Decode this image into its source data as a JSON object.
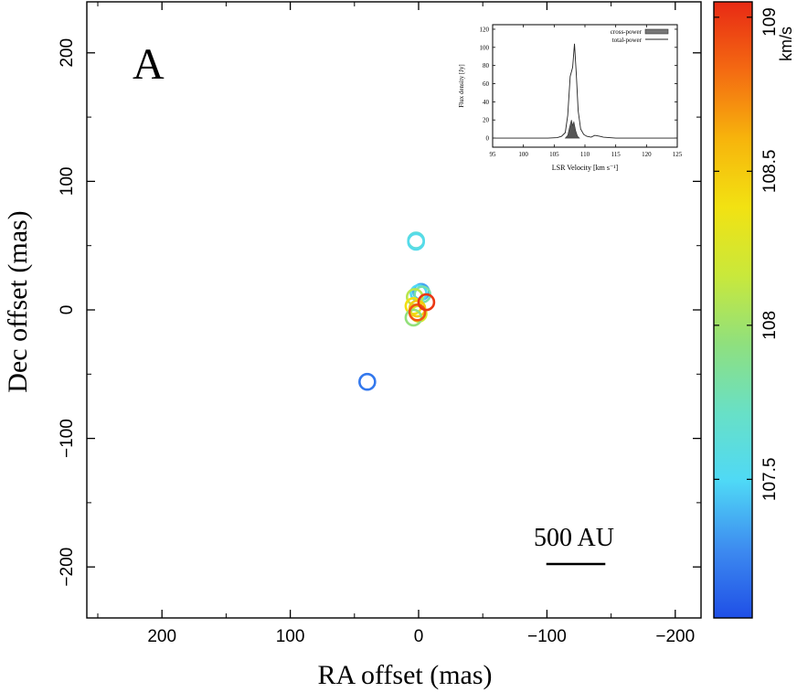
{
  "chart_data": [
    {
      "type": "scatter",
      "panel_label": "A",
      "xlabel": "RA offset (mas)",
      "ylabel": "Dec offset (mas)",
      "xlim": [
        260,
        -220
      ],
      "ylim": [
        -240,
        240
      ],
      "x_reversed": true,
      "x_ticks": [
        200,
        100,
        0,
        -100,
        -200
      ],
      "y_ticks": [
        200,
        100,
        0,
        -100,
        -200
      ],
      "x_tick_labels": [
        "200",
        "100",
        "0",
        "−100",
        "−200"
      ],
      "y_tick_labels": [
        "200",
        "100",
        "0",
        "−100",
        "−200"
      ],
      "scale_bar_label": "500 AU",
      "scale_bar_length_mas": 46,
      "points": [
        {
          "x": 2,
          "y": 54,
          "v": 107.62
        },
        {
          "x": 2,
          "y": 53,
          "v": 107.55
        },
        {
          "x": -2,
          "y": 14,
          "v": 107.35
        },
        {
          "x": 0,
          "y": 13,
          "v": 107.5
        },
        {
          "x": -3,
          "y": 12,
          "v": 107.8
        },
        {
          "x": 3,
          "y": 10,
          "v": 108.1
        },
        {
          "x": 4,
          "y": 3,
          "v": 108.4
        },
        {
          "x": 1,
          "y": 1,
          "v": 108.5
        },
        {
          "x": 0,
          "y": -3,
          "v": 108.25
        },
        {
          "x": 4,
          "y": -6,
          "v": 107.95
        },
        {
          "x": 1,
          "y": -2,
          "v": 108.9
        },
        {
          "x": -6,
          "y": 6,
          "v": 109.0
        },
        {
          "x": 40,
          "y": -56,
          "v": 107.2
        }
      ],
      "colorbar": {
        "label": "km/s",
        "vmin": 107.05,
        "vmax": 109.05,
        "ticks": [
          107.5,
          108,
          108.5,
          109
        ],
        "tick_labels": [
          "107.5",
          "108",
          "108.5",
          "109"
        ],
        "colors": [
          "#1f4fe6",
          "#3d8bf0",
          "#4fd9f6",
          "#68e0c6",
          "#8fe07e",
          "#c9e83b",
          "#f2e212",
          "#f7b40c",
          "#f46a12",
          "#e82a14"
        ]
      }
    },
    {
      "type": "area",
      "xlabel": "LSR Velocity [km s⁻¹]",
      "ylabel": "Flux density [Jy]",
      "xlim": [
        95,
        125
      ],
      "ylim": [
        -10,
        125
      ],
      "x_ticks": [
        95,
        100,
        105,
        110,
        115,
        120,
        125
      ],
      "y_ticks": [
        0,
        20,
        40,
        60,
        80,
        100,
        120
      ],
      "legend_position": "top-right",
      "series": [
        {
          "name": "total-power",
          "x": [
            95,
            104,
            105.5,
            106.2,
            106.8,
            107.2,
            107.6,
            108.0,
            108.3,
            108.6,
            108.9,
            109.3,
            109.8,
            110.3,
            111,
            111.6,
            112.4,
            113,
            115,
            125
          ],
          "values": [
            0,
            0,
            0.5,
            2,
            6,
            25,
            68,
            78,
            104,
            70,
            30,
            10,
            4,
            2,
            1,
            3,
            2,
            1,
            0,
            0
          ]
        },
        {
          "name": "cross-power",
          "x": [
            106.8,
            107.2,
            107.5,
            107.8,
            108.0,
            108.2,
            108.5,
            108.8,
            109.1
          ],
          "values": [
            0,
            3,
            12,
            20,
            14,
            18,
            8,
            2,
            0
          ]
        }
      ]
    }
  ]
}
